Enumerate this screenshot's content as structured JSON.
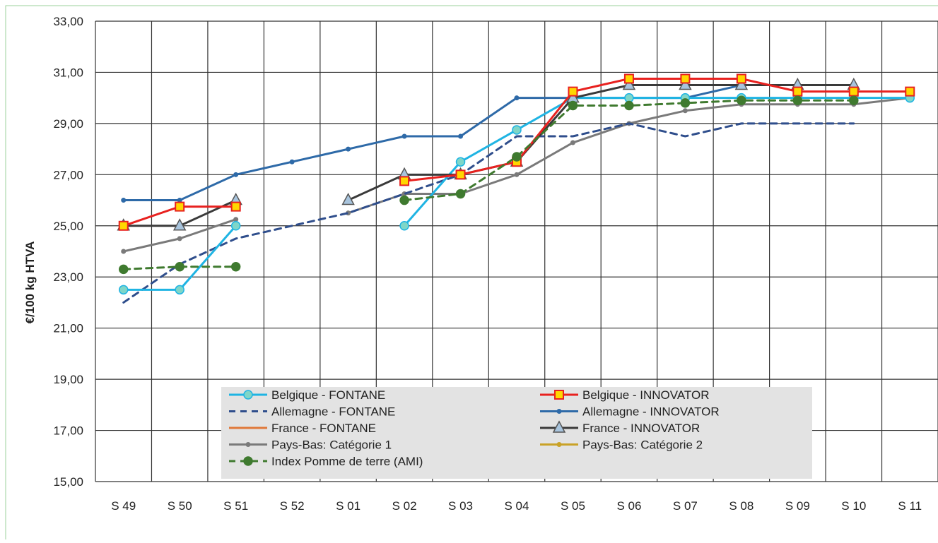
{
  "chart_data": {
    "type": "line",
    "title": "",
    "xlabel": "",
    "ylabel": "€/100 kg HTVA",
    "categories": [
      "S 49",
      "S 50",
      "S 51",
      "S 52",
      "S 01",
      "S 02",
      "S 03",
      "S 04",
      "S 05",
      "S 06",
      "S 07",
      "S 08",
      "S 09",
      "S 10",
      "S 11"
    ],
    "ylim": [
      15,
      33
    ],
    "yticks": [
      "15,00",
      "17,00",
      "19,00",
      "21,00",
      "23,00",
      "25,00",
      "27,00",
      "29,00",
      "31,00",
      "33,00"
    ],
    "grid": true,
    "legend_position": "bottom-center",
    "series": [
      {
        "name": "Belgique - FONTANE",
        "color": "#1fb4e3",
        "dash": "solid",
        "marker": "circle",
        "marker_fill": "#7fd6c8",
        "values": [
          22.5,
          22.5,
          25.0,
          null,
          null,
          25.0,
          27.5,
          28.75,
          30.0,
          30.0,
          30.0,
          30.0,
          30.0,
          30.0,
          30.0
        ]
      },
      {
        "name": "Belgique - INNOVATOR",
        "color": "#e8211f",
        "dash": "solid",
        "marker": "square",
        "marker_fill": "#ffd700",
        "values": [
          25.0,
          25.75,
          25.75,
          null,
          null,
          26.75,
          27.0,
          27.5,
          30.25,
          30.75,
          30.75,
          30.75,
          30.25,
          30.25,
          30.25
        ]
      },
      {
        "name": "Allemagne - FONTANE",
        "color": "#2f4e8c",
        "dash": "dashed",
        "marker": "none",
        "values": [
          22.0,
          23.5,
          24.5,
          25.0,
          25.5,
          26.25,
          27.0,
          28.5,
          28.5,
          29.0,
          28.5,
          29.0,
          29.0,
          29.0,
          null
        ]
      },
      {
        "name": "Allemagne - INNOVATOR",
        "color": "#2e6aa8",
        "dash": "solid",
        "marker": "dot",
        "values": [
          26.0,
          26.0,
          27.0,
          27.5,
          28.0,
          28.5,
          28.5,
          30.0,
          30.0,
          30.0,
          30.0,
          30.5,
          30.5,
          30.5,
          null
        ]
      },
      {
        "name": "France - FONTANE",
        "color": "#e0783a",
        "dash": "solid",
        "marker": "none",
        "values": [
          null,
          null,
          null,
          null,
          null,
          null,
          null,
          null,
          null,
          null,
          null,
          null,
          null,
          null,
          null
        ]
      },
      {
        "name": "France - INNOVATOR",
        "color": "#3a3a3a",
        "dash": "solid",
        "marker": "triangle",
        "marker_fill": "#a8c4dd",
        "values": [
          25.0,
          25.0,
          26.0,
          null,
          26.0,
          27.0,
          27.0,
          27.5,
          30.0,
          30.5,
          30.5,
          30.5,
          30.5,
          30.5,
          null
        ]
      },
      {
        "name": "Pays-Bas: Catégorie 1",
        "color": "#7a7a7a",
        "dash": "solid",
        "marker": "dot",
        "values": [
          24.0,
          24.5,
          25.25,
          null,
          25.5,
          26.25,
          26.25,
          27.0,
          28.25,
          29.0,
          29.5,
          29.75,
          29.75,
          29.75,
          30.0
        ]
      },
      {
        "name": "Pays-Bas: Catégorie 2",
        "color": "#c9a227",
        "dash": "solid",
        "marker": "dot",
        "values": [
          null,
          null,
          null,
          null,
          null,
          null,
          null,
          null,
          null,
          null,
          null,
          null,
          null,
          null,
          null
        ]
      },
      {
        "name": "Index Pomme de terre (AMI)",
        "color": "#3f7a2f",
        "dash": "dashed",
        "marker": "circle",
        "marker_fill": "#3f7a2f",
        "values": [
          23.3,
          23.4,
          23.4,
          null,
          null,
          26.0,
          26.25,
          27.7,
          29.7,
          29.7,
          29.8,
          29.9,
          29.9,
          29.9,
          null
        ]
      }
    ]
  }
}
